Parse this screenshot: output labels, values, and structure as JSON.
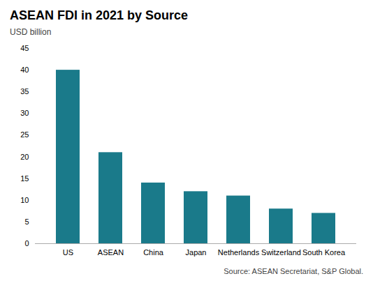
{
  "chart_data": {
    "type": "bar",
    "title": "ASEAN FDI in 2021 by Source",
    "ylabel": "USD billion",
    "categories": [
      "US",
      "ASEAN",
      "China",
      "Japan",
      "Netherlands",
      "Switzerland",
      "South Korea"
    ],
    "values": [
      40,
      21,
      14,
      12,
      11,
      8,
      7
    ],
    "color": "#1a7a8a",
    "ylim": [
      0,
      45
    ],
    "yticks": [
      0,
      5,
      10,
      15,
      20,
      25,
      30,
      35,
      40,
      45
    ],
    "grid": false,
    "source": "Source: ASEAN Secretariat, S&P Global."
  }
}
